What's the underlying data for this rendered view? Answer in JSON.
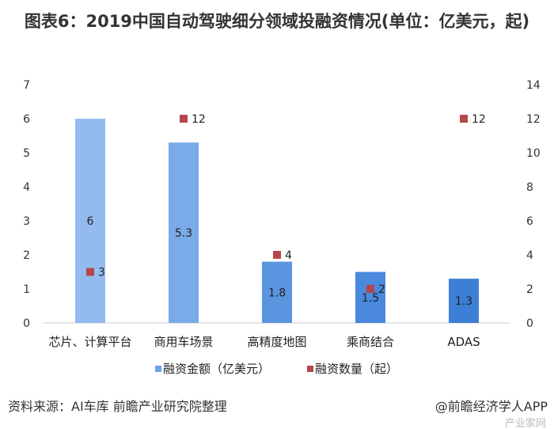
{
  "chart_data": {
    "type": "bar",
    "title": "图表6：2019中国自动驾驶细分领域投融资情况(单位：亿美元，起)",
    "categories": [
      "芯片、计算平台",
      "商用车场景",
      "高精度地图",
      "乘商结合",
      "ADAS"
    ],
    "series": [
      {
        "name": "融资金额（亿美元）",
        "type": "bar",
        "axis": "left",
        "values": [
          6,
          5.3,
          1.8,
          1.5,
          1.3
        ],
        "color": "#6fa3e6"
      },
      {
        "name": "融资数量（起）",
        "type": "scatter",
        "axis": "right",
        "values": [
          3,
          12,
          4,
          2,
          12
        ],
        "color": "#b5474a"
      }
    ],
    "bar_colors": [
      "#93bbef",
      "#7aaae8",
      "#5b95e0",
      "#4a89dc",
      "#3d7fd6"
    ],
    "ylim_left": [
      0,
      7
    ],
    "yticks_left": [
      0,
      1,
      2,
      3,
      4,
      5,
      6,
      7
    ],
    "ylim_right": [
      0,
      14
    ],
    "yticks_right": [
      0,
      2,
      4,
      6,
      8,
      10,
      12,
      14
    ],
    "grid": false,
    "legend": "bottom"
  },
  "source": "资料来源：AI车库 前瞻产业研究院整理",
  "credit": "@前瞻经济学人APP",
  "watermark": "产业家网"
}
